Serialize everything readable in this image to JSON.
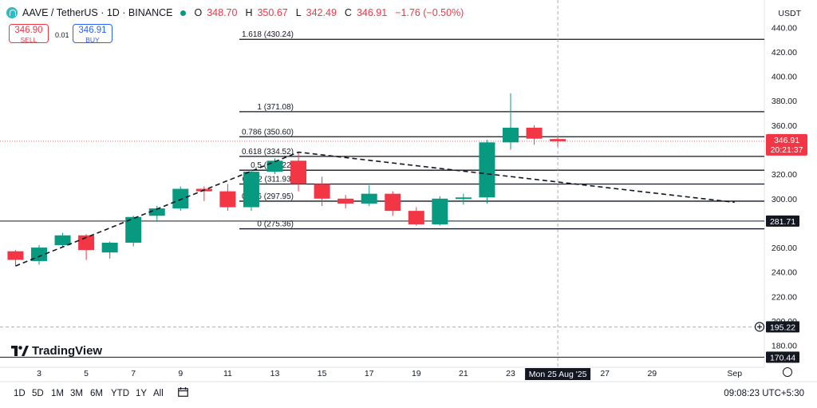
{
  "header": {
    "symbol": "AAVE / TetherUS · 1D · BINANCE",
    "open_label": "O",
    "open": "348.70",
    "high_label": "H",
    "high": "350.67",
    "low_label": "L",
    "low": "342.49",
    "close_label": "C",
    "close": "346.91",
    "change": "−1.76 (−0.50%)"
  },
  "trade": {
    "sell_price": "346.90",
    "sell_label": "SELL",
    "spread": "0.01",
    "buy_price": "346.91",
    "buy_label": "BUY"
  },
  "currency": "USDT",
  "logo": "TradingView",
  "countdown": "20:21:37",
  "crosshair": {
    "date_label": "Mon 25 Aug '25",
    "price_label": "195.22"
  },
  "ranges": [
    "1D",
    "5D",
    "1M",
    "3M",
    "6M",
    "YTD",
    "1Y",
    "All"
  ],
  "clock": "09:08:23 UTC+5:30",
  "colors": {
    "up": "#089981",
    "down": "#f23645",
    "accent": "#2962ff"
  },
  "icons": [
    "aave-coin-icon",
    "market-open-dot-icon",
    "calendar-range-icon",
    "gear-icon",
    "plus-circle-icon"
  ],
  "chart_data": {
    "type": "candlestick",
    "x_ticks": [
      "3",
      "5",
      "7",
      "9",
      "11",
      "13",
      "15",
      "17",
      "19",
      "21",
      "23",
      "27",
      "29",
      "Sep"
    ],
    "y_ticks": [
      180,
      200,
      220,
      240,
      260,
      280,
      300,
      320,
      340,
      360,
      380,
      400,
      420,
      440
    ],
    "ylim": [
      170,
      448
    ],
    "candles": [
      {
        "date": "2",
        "o": 257,
        "h": 258,
        "l": 245,
        "c": 250
      },
      {
        "date": "3",
        "o": 249,
        "h": 262,
        "l": 246,
        "c": 260
      },
      {
        "date": "4",
        "o": 262,
        "h": 272,
        "l": 261,
        "c": 270
      },
      {
        "date": "5",
        "o": 270,
        "h": 271,
        "l": 250,
        "c": 258
      },
      {
        "date": "6",
        "o": 256,
        "h": 265,
        "l": 251,
        "c": 264
      },
      {
        "date": "7",
        "o": 264,
        "h": 286,
        "l": 261,
        "c": 285
      },
      {
        "date": "8",
        "o": 286,
        "h": 294,
        "l": 281,
        "c": 292
      },
      {
        "date": "9",
        "o": 292,
        "h": 310,
        "l": 290,
        "c": 308
      },
      {
        "date": "10",
        "o": 308,
        "h": 310,
        "l": 298,
        "c": 306
      },
      {
        "date": "11",
        "o": 306,
        "h": 312,
        "l": 290,
        "c": 293
      },
      {
        "date": "12",
        "o": 293,
        "h": 324,
        "l": 290,
        "c": 322
      },
      {
        "date": "13",
        "o": 322,
        "h": 333,
        "l": 320,
        "c": 331
      },
      {
        "date": "14",
        "o": 331,
        "h": 338,
        "l": 306,
        "c": 312
      },
      {
        "date": "15",
        "o": 312,
        "h": 318,
        "l": 294,
        "c": 300
      },
      {
        "date": "16",
        "o": 300,
        "h": 303,
        "l": 292,
        "c": 296
      },
      {
        "date": "17",
        "o": 296,
        "h": 311,
        "l": 294,
        "c": 304
      },
      {
        "date": "18",
        "o": 304,
        "h": 306,
        "l": 286,
        "c": 290
      },
      {
        "date": "19",
        "o": 290,
        "h": 293,
        "l": 278,
        "c": 279
      },
      {
        "date": "20",
        "o": 279,
        "h": 302,
        "l": 278,
        "c": 300
      },
      {
        "date": "21",
        "o": 300,
        "h": 304,
        "l": 295,
        "c": 301
      },
      {
        "date": "22",
        "o": 301,
        "h": 348,
        "l": 296,
        "c": 346
      },
      {
        "date": "23",
        "o": 346,
        "h": 386,
        "l": 340,
        "c": 358
      },
      {
        "date": "24",
        "o": 358,
        "h": 360,
        "l": 344,
        "c": 349
      },
      {
        "date": "25",
        "o": 348.7,
        "h": 350.67,
        "l": 342.49,
        "c": 346.91
      }
    ],
    "last_price": "346.91",
    "price_labels": [
      "281.71",
      "170.44"
    ],
    "fibonacci": [
      {
        "level": "0",
        "value": "275.36",
        "label": "0 (275.36)"
      },
      {
        "level": "0.236",
        "value": "297.95",
        "label": "0.236 (297.95)"
      },
      {
        "level": "0.382",
        "value": "311.93",
        "label": "0.382 (311.93)"
      },
      {
        "level": "0.5",
        "value": "323.22",
        "label": "0.5 (323.22)"
      },
      {
        "level": "0.618",
        "value": "334.52",
        "label": "0.618 (334.52)"
      },
      {
        "level": "0.786",
        "value": "350.60",
        "label": "0.786 (350.60)"
      },
      {
        "level": "1",
        "value": "371.08",
        "label": "1 (371.08)"
      },
      {
        "level": "1.618",
        "value": "430.24",
        "label": "1.618 (430.24)"
      }
    ],
    "trendline_anchors": [
      {
        "date": "2",
        "price": 245
      },
      {
        "date": "14",
        "price": 338
      },
      {
        "date": "Sep 2",
        "price": 297
      }
    ]
  }
}
